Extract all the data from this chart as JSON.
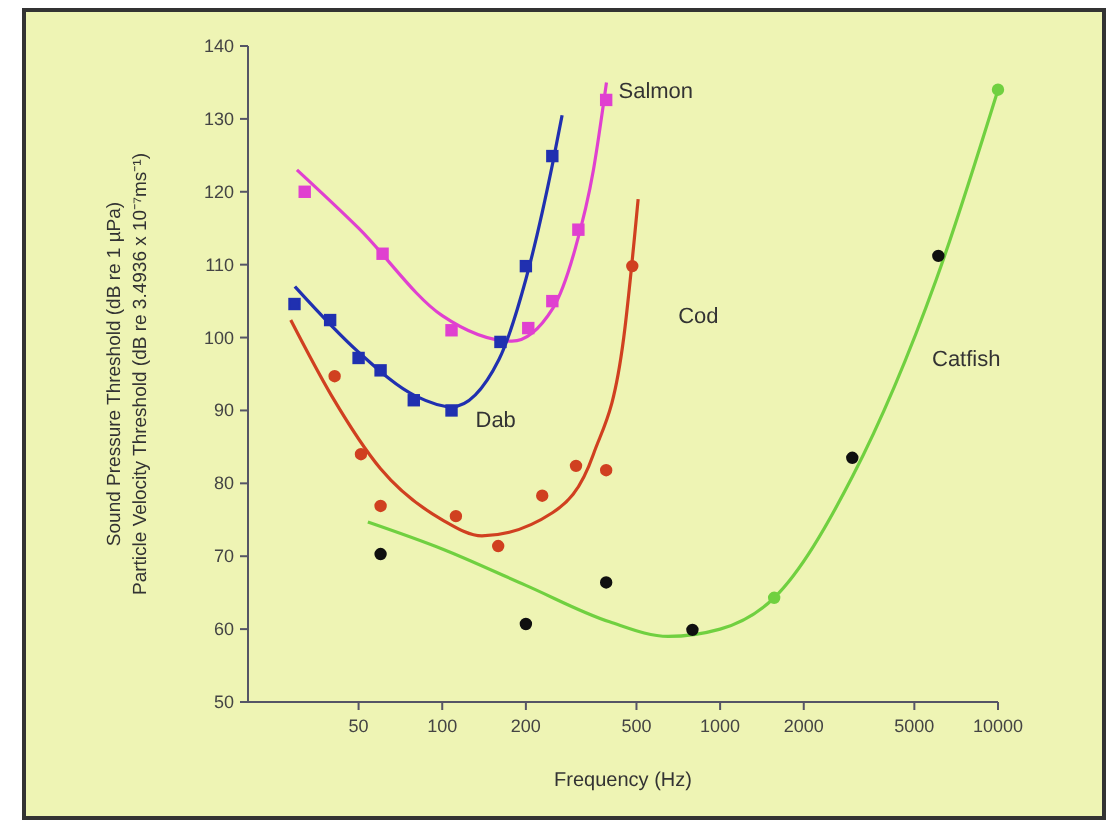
{
  "chart_data": {
    "type": "line",
    "xlabel": "Frequency (Hz)",
    "ylabel": "Sound Pressure Threshold (dB re 1 µPa)\nParticle Velocity Threshold (dB re 3.4936 x 10⁻⁷ms⁻¹)",
    "log": "x",
    "xlim": [
      20,
      10000
    ],
    "xticks": [
      50,
      100,
      200,
      500,
      1000,
      2000,
      5000,
      10000
    ],
    "ylim": [
      50,
      140
    ],
    "yticks": [
      50,
      60,
      70,
      80,
      90,
      100,
      110,
      120,
      130,
      140
    ],
    "grid": false,
    "legend": false,
    "series": [
      {
        "name": "Salmon",
        "color": "#e040d0",
        "marker": "none",
        "x": [
          30,
          50,
          100,
          178,
          250,
          300,
          350,
          390
        ],
        "values": [
          123,
          115,
          103,
          99.5,
          104,
          112,
          123,
          135
        ]
      },
      {
        "name": "Dab",
        "color": "#2030b0",
        "marker": "none",
        "x": [
          29.5,
          50,
          80,
          108,
          160,
          200,
          250,
          270
        ],
        "values": [
          107,
          98,
          92,
          90.5,
          97,
          108,
          124,
          130.5
        ]
      },
      {
        "name": "Cod",
        "color": "#d04020",
        "marker": "none",
        "x": [
          28.5,
          40,
          60,
          100,
          139,
          250,
          350,
          450,
          507
        ],
        "values": [
          102.4,
          92,
          82,
          75,
          72.8,
          76,
          84,
          100,
          119
        ]
      },
      {
        "name": "Catfish",
        "color": "#70d040",
        "marker": "none",
        "x": [
          54,
          100,
          200,
          400,
          650,
          1000,
          1565,
          3000,
          6000,
          10000
        ],
        "values": [
          74.7,
          71,
          66,
          61,
          59,
          60,
          64.3,
          81,
          108,
          134
        ]
      },
      {
        "type": "scatter",
        "color": "#e040d0",
        "marker": "square",
        "x": [
          32,
          61,
          108,
          204,
          249,
          309,
          389
        ],
        "values": [
          120,
          111.5,
          101,
          101.3,
          105,
          114.8,
          132.6
        ]
      },
      {
        "type": "scatter",
        "color": "#2030b0",
        "marker": "square",
        "x": [
          29.4,
          39.5,
          50,
          60,
          79,
          108,
          162,
          200,
          249
        ],
        "values": [
          104.6,
          102.4,
          97.2,
          95.5,
          91.4,
          90,
          99.4,
          109.8,
          124.9
        ]
      },
      {
        "type": "scatter",
        "color": "#d04020",
        "marker": "circle",
        "x": [
          41,
          51,
          60,
          112,
          159,
          229,
          303,
          389,
          483
        ],
        "values": [
          94.7,
          84,
          76.9,
          75.5,
          71.4,
          78.3,
          82.4,
          81.8,
          109.8
        ]
      },
      {
        "type": "scatter",
        "marker": "circle",
        "colors": [
          "#101010",
          "#101010",
          "#101010",
          "#101010",
          "#70d040",
          "#101010",
          "#101010",
          "#70d040"
        ],
        "x": [
          60,
          200,
          389,
          795,
          1565,
          2990,
          6100,
          10000
        ],
        "values": [
          70.3,
          60.7,
          66.4,
          59.9,
          64.3,
          83.5,
          111.2,
          134
        ]
      }
    ]
  }
}
